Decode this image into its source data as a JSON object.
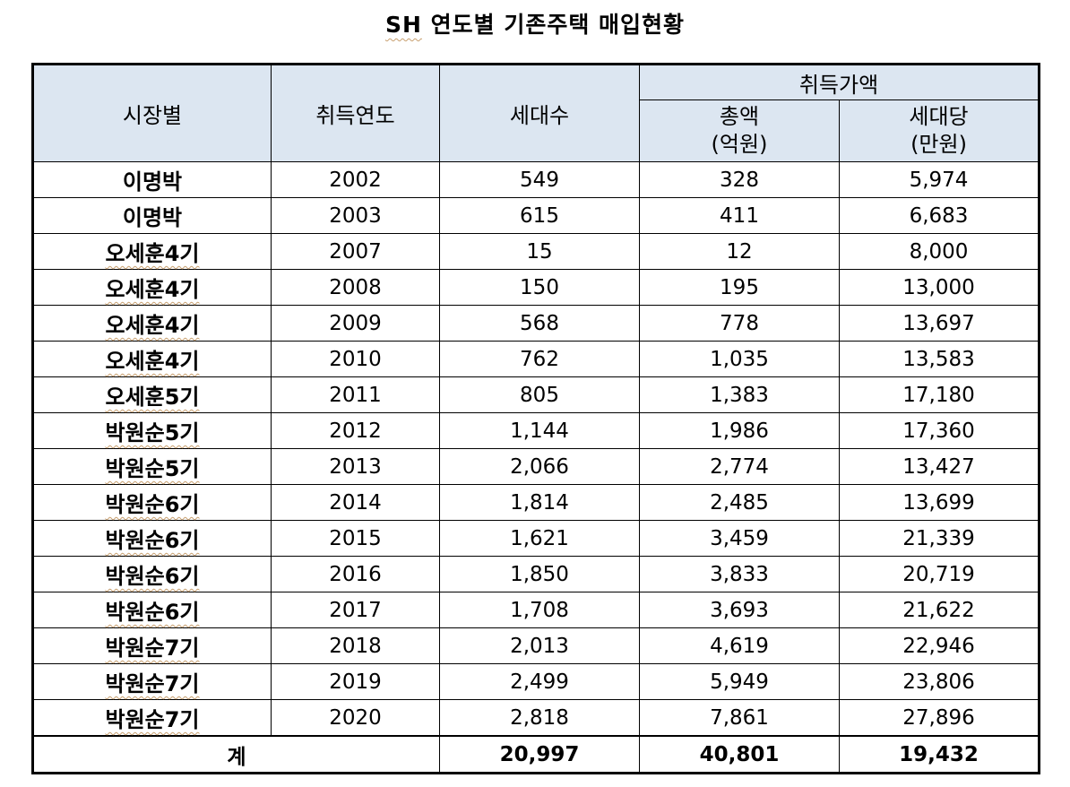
{
  "title": {
    "prefix": "SH",
    "rest": " 연도별 기존주택 매입현황"
  },
  "headers": {
    "mayor": "시장별",
    "year": "취득연도",
    "households": "세대수",
    "acquisition": "취득가액",
    "total_line1": "총액",
    "total_line2": "(억원)",
    "per_line1": "세대당",
    "per_line2": "(만원)"
  },
  "rows": [
    {
      "mayor": "이명박",
      "year": "2002",
      "households": "549",
      "total": "328",
      "per": "5,974",
      "wavy": false
    },
    {
      "mayor": "이명박",
      "year": "2003",
      "households": "615",
      "total": "411",
      "per": "6,683",
      "wavy": false
    },
    {
      "mayor": "오세훈4기",
      "year": "2007",
      "households": "15",
      "total": "12",
      "per": "8,000",
      "wavy": true
    },
    {
      "mayor": "오세훈4기",
      "year": "2008",
      "households": "150",
      "total": "195",
      "per": "13,000",
      "wavy": true
    },
    {
      "mayor": "오세훈4기",
      "year": "2009",
      "households": "568",
      "total": "778",
      "per": "13,697",
      "wavy": true
    },
    {
      "mayor": "오세훈4기",
      "year": "2010",
      "households": "762",
      "total": "1,035",
      "per": "13,583",
      "wavy": true
    },
    {
      "mayor": "오세훈5기",
      "year": "2011",
      "households": "805",
      "total": "1,383",
      "per": "17,180",
      "wavy": true
    },
    {
      "mayor": "박원순5기",
      "year": "2012",
      "households": "1,144",
      "total": "1,986",
      "per": "17,360",
      "wavy": true
    },
    {
      "mayor": "박원순5기",
      "year": "2013",
      "households": "2,066",
      "total": "2,774",
      "per": "13,427",
      "wavy": true
    },
    {
      "mayor": "박원순6기",
      "year": "2014",
      "households": "1,814",
      "total": "2,485",
      "per": "13,699",
      "wavy": true
    },
    {
      "mayor": "박원순6기",
      "year": "2015",
      "households": "1,621",
      "total": "3,459",
      "per": "21,339",
      "wavy": true
    },
    {
      "mayor": "박원순6기",
      "year": "2016",
      "households": "1,850",
      "total": "3,833",
      "per": "20,719",
      "wavy": true
    },
    {
      "mayor": "박원순6기",
      "year": "2017",
      "households": "1,708",
      "total": "3,693",
      "per": "21,622",
      "wavy": true
    },
    {
      "mayor": "박원순7기",
      "year": "2018",
      "households": "2,013",
      "total": "4,619",
      "per": "22,946",
      "wavy": true
    },
    {
      "mayor": "박원순7기",
      "year": "2019",
      "households": "2,499",
      "total": "5,949",
      "per": "23,806",
      "wavy": true
    },
    {
      "mayor": "박원순7기",
      "year": "2020",
      "households": "2,818",
      "total": "7,861",
      "per": "27,896",
      "wavy": true
    }
  ],
  "total_row": {
    "label": "계",
    "households": "20,997",
    "total": "40,801",
    "per": "19,432"
  },
  "colors": {
    "header_bg": "#dce6f1",
    "border": "#000000",
    "wavy_underline": "#c8a070"
  }
}
